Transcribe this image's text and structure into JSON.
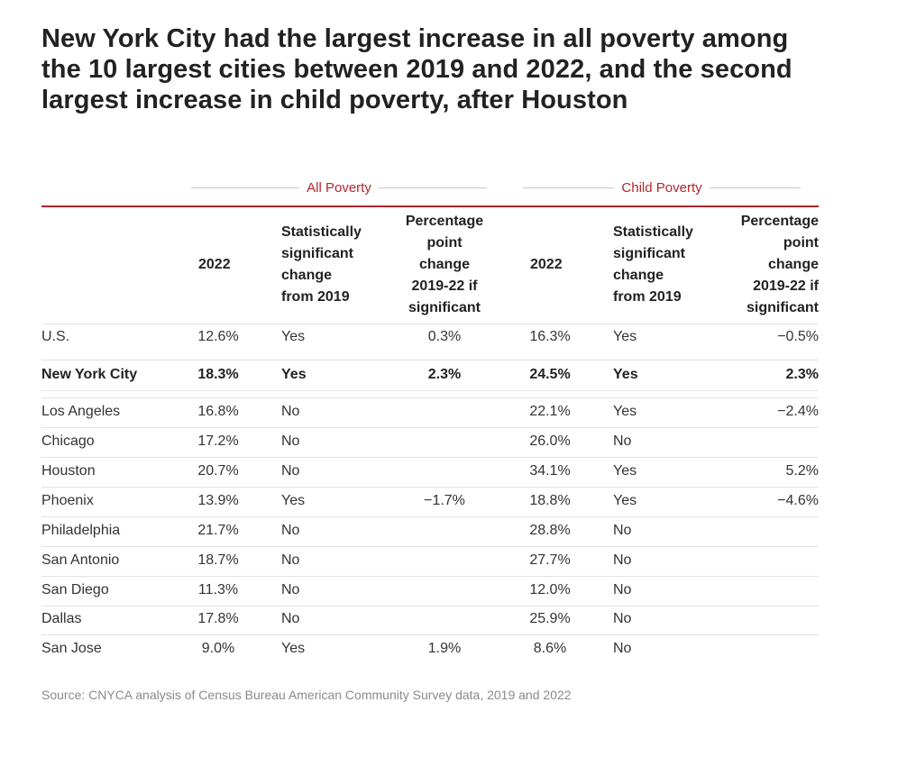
{
  "title": "New York City had the largest increase in all poverty among the 10 largest cities between 2019 and 2022, and the second largest increase in child poverty, after Houston",
  "groups": {
    "all": "All Poverty",
    "child": "Child Poverty"
  },
  "headers": {
    "year": "2022",
    "sig": [
      "Statistically",
      "significant",
      "change",
      "from 2019"
    ],
    "pct": [
      "Percentage",
      "point",
      "change",
      "2019-22 if",
      "significant"
    ]
  },
  "source": "Source: CNYCA analysis of Census Bureau American Community Survey data, 2019 and 2022",
  "colors": {
    "accent": "#b3262d",
    "text": "#222222",
    "source": "#8a8a8a",
    "rule": "#e2e2e2"
  },
  "chart_data": {
    "type": "table",
    "title": "New York City had the largest increase in all poverty among the 10 largest cities between 2019 and 2022, and the second largest increase in child poverty, after Houston",
    "column_groups": [
      "All Poverty",
      "Child Poverty"
    ],
    "columns": [
      "",
      "2022",
      "Statistically significant change from 2019",
      "Percentage point change 2019-22 if significant",
      "2022",
      "Statistically significant change from 2019",
      "Percentage point change 2019-22 if significant"
    ],
    "rows": [
      {
        "name": "U.S.",
        "all_2022": "12.6%",
        "all_sig": "Yes",
        "all_change": "0.3%",
        "child_2022": "16.3%",
        "child_sig": "Yes",
        "child_change": "−0.5%",
        "bold": false
      },
      {
        "name": "New York City",
        "all_2022": "18.3%",
        "all_sig": "Yes",
        "all_change": "2.3%",
        "child_2022": "24.5%",
        "child_sig": "Yes",
        "child_change": "2.3%",
        "bold": true
      },
      {
        "name": "Los Angeles",
        "all_2022": "16.8%",
        "all_sig": "No",
        "all_change": "",
        "child_2022": "22.1%",
        "child_sig": "Yes",
        "child_change": "−2.4%",
        "bold": false
      },
      {
        "name": "Chicago",
        "all_2022": "17.2%",
        "all_sig": "No",
        "all_change": "",
        "child_2022": "26.0%",
        "child_sig": "No",
        "child_change": "",
        "bold": false
      },
      {
        "name": "Houston",
        "all_2022": "20.7%",
        "all_sig": "No",
        "all_change": "",
        "child_2022": "34.1%",
        "child_sig": "Yes",
        "child_change": "5.2%",
        "bold": false
      },
      {
        "name": "Phoenix",
        "all_2022": "13.9%",
        "all_sig": "Yes",
        "all_change": "−1.7%",
        "child_2022": "18.8%",
        "child_sig": "Yes",
        "child_change": "−4.6%",
        "bold": false
      },
      {
        "name": "Philadelphia",
        "all_2022": "21.7%",
        "all_sig": "No",
        "all_change": "",
        "child_2022": "28.8%",
        "child_sig": "No",
        "child_change": "",
        "bold": false
      },
      {
        "name": "San Antonio",
        "all_2022": "18.7%",
        "all_sig": "No",
        "all_change": "",
        "child_2022": "27.7%",
        "child_sig": "No",
        "child_change": "",
        "bold": false
      },
      {
        "name": "San Diego",
        "all_2022": "11.3%",
        "all_sig": "No",
        "all_change": "",
        "child_2022": "12.0%",
        "child_sig": "No",
        "child_change": "",
        "bold": false
      },
      {
        "name": "Dallas",
        "all_2022": "17.8%",
        "all_sig": "No",
        "all_change": "",
        "child_2022": "25.9%",
        "child_sig": "No",
        "child_change": "",
        "bold": false
      },
      {
        "name": "San Jose",
        "all_2022": "9.0%",
        "all_sig": "Yes",
        "all_change": "1.9%",
        "child_2022": "8.6%",
        "child_sig": "No",
        "child_change": "",
        "bold": false
      }
    ]
  }
}
